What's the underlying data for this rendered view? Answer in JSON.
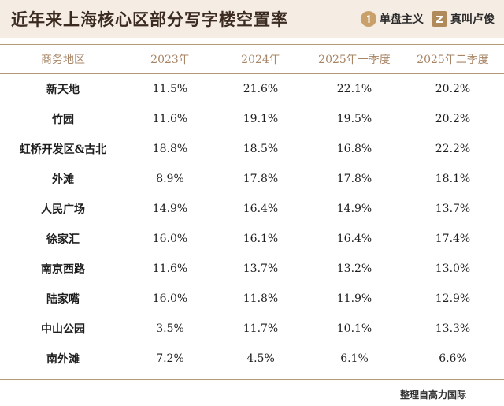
{
  "header": {
    "title": "近年来上海核心区部分写字楼空置率",
    "logos": [
      {
        "label": "单盘主义",
        "icon": "number-one-icon"
      },
      {
        "label": "真叫卢俊",
        "icon": "z-logo-icon"
      }
    ]
  },
  "table": {
    "columns": [
      "商务地区",
      "2023年",
      "2024年",
      "2025年一季度",
      "2025年二季度"
    ],
    "rows": [
      [
        "新天地",
        "11.5%",
        "21.6%",
        "22.1%",
        "20.2%"
      ],
      [
        "竹园",
        "11.6%",
        "19.1%",
        "19.5%",
        "20.2%"
      ],
      [
        "虹桥开发区&古北",
        "18.8%",
        "18.5%",
        "16.8%",
        "22.2%"
      ],
      [
        "外滩",
        "8.9%",
        "17.8%",
        "17.8%",
        "18.1%"
      ],
      [
        "人民广场",
        "14.9%",
        "16.4%",
        "14.9%",
        "13.7%"
      ],
      [
        "徐家汇",
        "16.0%",
        "16.1%",
        "16.4%",
        "17.4%"
      ],
      [
        "南京西路",
        "11.6%",
        "13.7%",
        "13.2%",
        "13.0%"
      ],
      [
        "陆家嘴",
        "16.0%",
        "11.8%",
        "11.9%",
        "12.9%"
      ],
      [
        "中山公园",
        "3.5%",
        "11.7%",
        "10.1%",
        "13.3%"
      ],
      [
        "南外滩",
        "7.2%",
        "4.5%",
        "6.1%",
        "6.6%"
      ]
    ]
  },
  "footer": {
    "source": "整理自高力国际"
  },
  "colors": {
    "header_bg": "#f5ece3",
    "accent": "#b59977",
    "header_text": "#a88566"
  }
}
